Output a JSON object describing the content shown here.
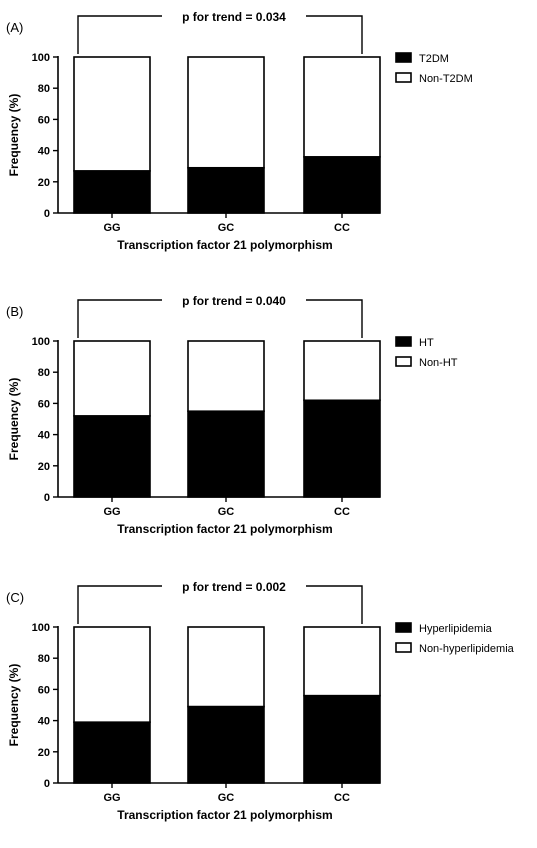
{
  "chart_data": [
    {
      "type": "bar",
      "panel_label": "(A)",
      "trend_label": "p for trend = 0.034",
      "categories": [
        "GG",
        "GC",
        "CC"
      ],
      "series": [
        {
          "name": "T2DM",
          "color": "#000000",
          "values": [
            27,
            29,
            36
          ]
        },
        {
          "name": "Non-T2DM",
          "color": "#ffffff",
          "values": [
            73,
            71,
            64
          ]
        }
      ],
      "stacked": true,
      "xlabel": "Transcription factor 21 polymorphism",
      "ylabel": "Frequency (%)",
      "ylim": [
        0,
        100
      ],
      "yticks": [
        "0",
        "20",
        "40",
        "60",
        "80",
        "100"
      ],
      "legend_position": "right",
      "grid": false
    },
    {
      "type": "bar",
      "panel_label": "(B)",
      "trend_label": "p for trend = 0.040",
      "categories": [
        "GG",
        "GC",
        "CC"
      ],
      "series": [
        {
          "name": "HT",
          "color": "#000000",
          "values": [
            52,
            55,
            62
          ]
        },
        {
          "name": "Non-HT",
          "color": "#ffffff",
          "values": [
            48,
            45,
            38
          ]
        }
      ],
      "stacked": true,
      "xlabel": "Transcription factor 21 polymorphism",
      "ylabel": "Frequency (%)",
      "ylim": [
        0,
        100
      ],
      "yticks": [
        "0",
        "20",
        "40",
        "60",
        "80",
        "100"
      ],
      "legend_position": "right",
      "grid": false
    },
    {
      "type": "bar",
      "panel_label": "(C)",
      "trend_label": "p for trend = 0.002",
      "categories": [
        "GG",
        "GC",
        "CC"
      ],
      "series": [
        {
          "name": "Hyperlipidemia",
          "color": "#000000",
          "values": [
            39,
            49,
            56
          ]
        },
        {
          "name": "Non-hyperlipidemia",
          "color": "#ffffff",
          "values": [
            61,
            51,
            44
          ]
        }
      ],
      "stacked": true,
      "xlabel": "Transcription factor 21 polymorphism",
      "ylabel": "Frequency (%)",
      "ylim": [
        0,
        100
      ],
      "yticks": [
        "0",
        "20",
        "40",
        "60",
        "80",
        "100"
      ],
      "legend_position": "right",
      "grid": false
    }
  ]
}
